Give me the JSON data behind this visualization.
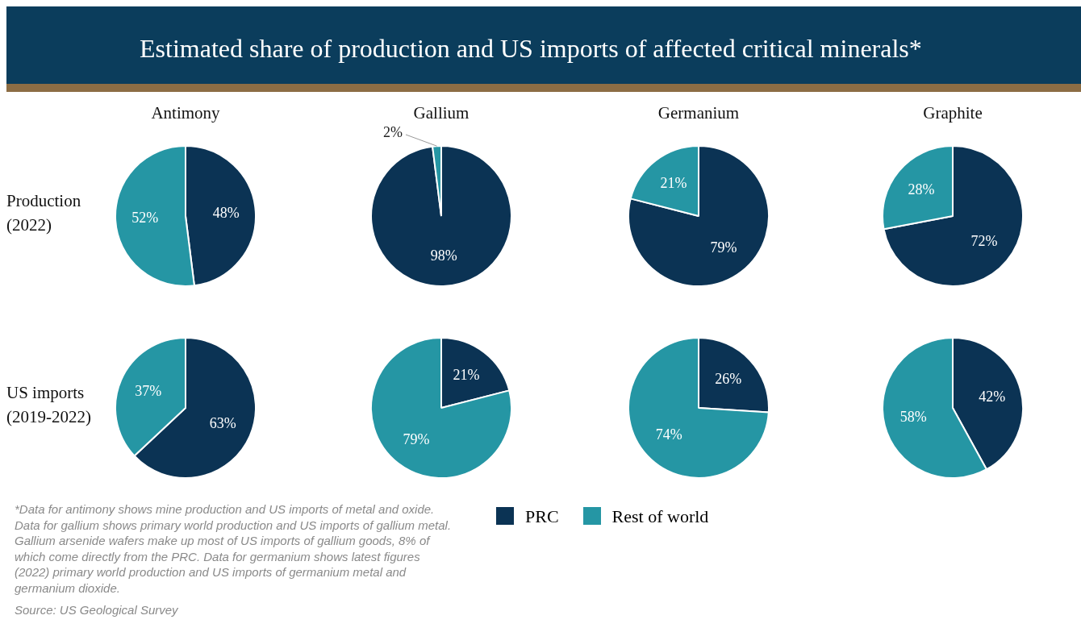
{
  "chart_data": [
    {
      "type": "other",
      "title": "Estimated share of production and US imports of affected critical minerals*"
    },
    {
      "type": "pie",
      "title": "Antimony",
      "ylabel": "Production (2022)",
      "categories": [
        "PRC",
        "Rest of world"
      ],
      "values": [
        48,
        52
      ],
      "value_labels": [
        "48%",
        "52%"
      ],
      "colors": [
        "#0b3354",
        "#2596a4"
      ],
      "legend": "bottom"
    },
    {
      "type": "pie",
      "title": "Gallium",
      "categories": [
        null,
        null
      ],
      "values": [
        98,
        2
      ],
      "value_labels": [
        "98%",
        "2%"
      ],
      "colors": [
        "#0b3354",
        "#2596a4"
      ]
    },
    {
      "type": "pie",
      "title": "Germanium",
      "categories": [
        null,
        null
      ],
      "values": [
        79,
        21
      ],
      "value_labels": [
        "79%",
        "21%"
      ],
      "colors": [
        "#0b3354",
        "#2596a4"
      ]
    },
    {
      "type": "pie",
      "title": "Graphite",
      "categories": [
        null,
        null
      ],
      "values": [
        72,
        28
      ],
      "value_labels": [
        "72%",
        "28%"
      ],
      "colors": [
        "#0b3354",
        "#2596a4"
      ]
    },
    {
      "type": "pie",
      "ylabel": "US imports (2019-2022)",
      "categories": [
        null,
        null
      ],
      "values": [
        63,
        37
      ],
      "value_labels": [
        "63%",
        "37%"
      ],
      "colors": [
        "#0b3354",
        "#2596a4"
      ]
    },
    {
      "type": "pie",
      "categories": [
        null,
        null
      ],
      "values": [
        21,
        79
      ],
      "value_labels": [
        "21%",
        "79%"
      ],
      "colors": [
        "#0b3354",
        "#2596a4"
      ]
    },
    {
      "type": "pie",
      "categories": [
        null,
        null
      ],
      "values": [
        26,
        74
      ],
      "value_labels": [
        "26%",
        "74%"
      ],
      "colors": [
        "#0b3354",
        "#2596a4"
      ]
    },
    {
      "type": "pie",
      "categories": [
        null,
        null
      ],
      "values": [
        42,
        58
      ],
      "value_labels": [
        "42%",
        "58%"
      ],
      "colors": [
        "#0b3354",
        "#2596a4"
      ]
    },
    {
      "type": "other",
      "annotations": [
        "*Data for antimony shows mine production and US imports of metal and oxide. Data for gallium shows  primary world production and US imports of gallium metal. Gallium arsenide wafers make up most of US imports of gallium goods, 8% of which come directly from the PRC. Data for germanium shows latest figures (2022) primary world production and US imports of germanium metal and germanium dioxide.",
        "Source: US Geological Survey"
      ]
    }
  ]
}
